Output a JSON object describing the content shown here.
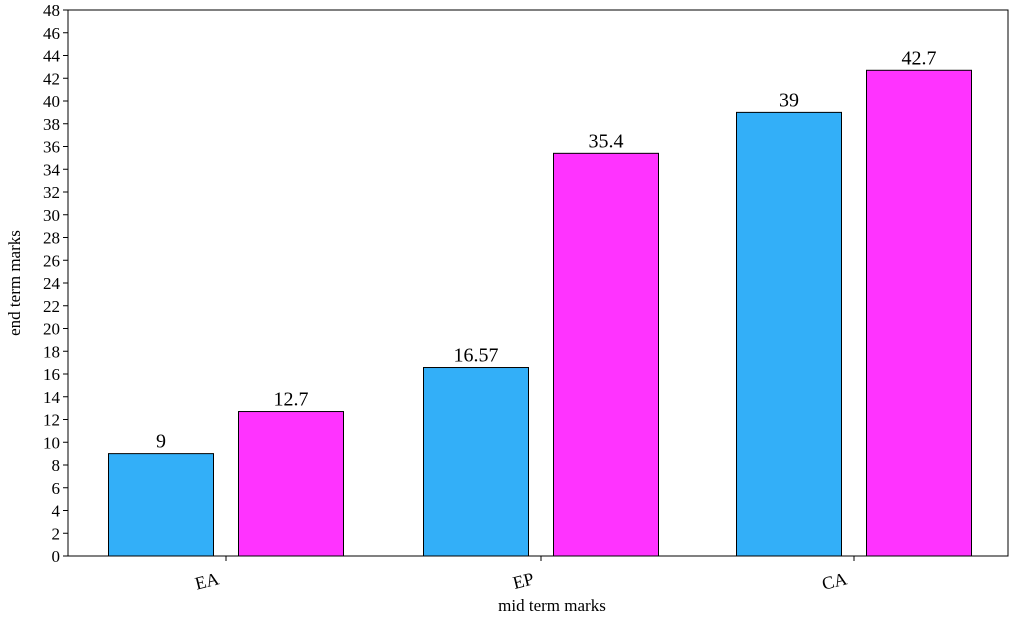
{
  "chart_data": {
    "type": "bar",
    "title": "",
    "xlabel": "mid term marks",
    "ylabel": "end term marks",
    "categories": [
      "EA",
      "EP",
      "CA"
    ],
    "series": [
      {
        "values": [
          9,
          16.57,
          39
        ],
        "labels": [
          "9",
          "16.57",
          "39"
        ],
        "color": "#33AFF8"
      },
      {
        "values": [
          12.7,
          35.4,
          42.7
        ],
        "labels": [
          "12.7",
          "35.4",
          "42.7"
        ],
        "color": "#FF33FF"
      }
    ],
    "ylim": [
      0,
      48
    ],
    "ytick_step": 2,
    "grid": false,
    "legend": "none"
  }
}
